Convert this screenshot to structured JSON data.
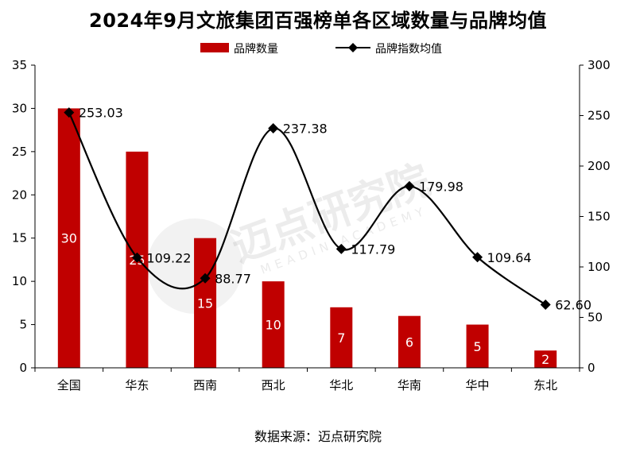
{
  "title": "2024年9月文旅集团百强榜单各区域数量与品牌均值",
  "source": "数据来源：迈点研究院",
  "watermark": {
    "text": "迈点研究院",
    "subtext": "MEADIN ACADEMY"
  },
  "colors": {
    "bar": "#c00000",
    "line": "#000000"
  },
  "chart_data": {
    "type": "bar+line",
    "categories": [
      "全国",
      "华东",
      "西南",
      "西北",
      "华北",
      "华南",
      "华中",
      "东北"
    ],
    "series": [
      {
        "name": "品牌数量",
        "type": "bar",
        "axis": "left",
        "values": [
          30,
          25,
          15,
          10,
          7,
          6,
          5,
          2
        ]
      },
      {
        "name": "品牌指数均值",
        "type": "line",
        "axis": "right",
        "values": [
          253.03,
          109.22,
          88.77,
          237.38,
          117.79,
          179.98,
          109.64,
          62.6
        ]
      }
    ],
    "left_axis": {
      "min": 0,
      "max": 35,
      "step": 5
    },
    "right_axis": {
      "min": 0,
      "max": 300,
      "step": 50
    },
    "legend_position": "top-center"
  }
}
